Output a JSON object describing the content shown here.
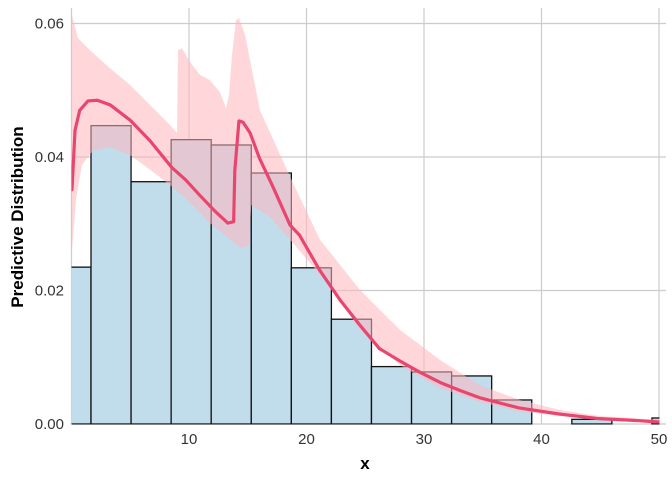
{
  "chart_data": {
    "type": "bar",
    "title": "",
    "xlabel": "x",
    "ylabel": "Predictive Distribution",
    "xlim": [
      0,
      50
    ],
    "ylim": [
      0,
      0.0615
    ],
    "grid": true,
    "x_ticks": [
      10,
      20,
      30,
      40,
      50
    ],
    "x_tick_labels": [
      "10",
      "20",
      "30",
      "40",
      "50"
    ],
    "y_ticks": [
      0,
      0.02,
      0.04,
      0.06
    ],
    "y_tick_labels": [
      "0.00",
      "0.02",
      "0.04",
      "0.06"
    ],
    "colors": {
      "bars": "#c1dcea",
      "bar_edge": "#111111",
      "ribbon": "#ffb6bd",
      "line": "#e8466f",
      "grid": "#cccccc"
    },
    "histogram": {
      "bin_edges": [
        -1.75,
        1.66,
        5.07,
        8.48,
        11.89,
        15.3,
        18.71,
        22.12,
        25.53,
        28.94,
        32.35,
        35.76,
        39.17,
        42.58,
        45.99,
        49.4,
        52.81
      ],
      "density": [
        0.0235,
        0.0447,
        0.0363,
        0.0426,
        0.0418,
        0.0376,
        0.0234,
        0.0157,
        0.0086,
        0.0078,
        0.0072,
        0.0036,
        0,
        0.0007,
        0,
        0.0009
      ]
    },
    "mean_line": {
      "x": [
        0.04,
        0.3,
        0.7,
        1.4,
        2.2,
        3.3,
        5,
        6.7,
        8.55,
        9.7,
        10.9,
        12.2,
        13.3,
        13.8,
        13.9,
        14.25,
        14.6,
        15.2,
        16,
        17.1,
        18.6,
        19.4,
        21.1,
        22.85,
        24.55,
        26.2,
        27.9,
        29.6,
        31.4,
        33.1,
        34.8,
        38.1,
        41.5,
        44.9,
        48.3,
        50
      ],
      "y": [
        0.0351,
        0.044,
        0.047,
        0.0484,
        0.0485,
        0.0478,
        0.0455,
        0.0424,
        0.0384,
        0.0366,
        0.0343,
        0.0319,
        0.0301,
        0.0303,
        0.038,
        0.0454,
        0.0452,
        0.0436,
        0.0398,
        0.0357,
        0.0298,
        0.0283,
        0.0231,
        0.0186,
        0.0148,
        0.0113,
        0.0095,
        0.0078,
        0.0062,
        0.005,
        0.0039,
        0.0024,
        0.0015,
        0.0008,
        0.0005,
        0.0003
      ]
    },
    "ribbon_upper": {
      "x": [
        0.04,
        0.55,
        1.57,
        3.28,
        4.98,
        6.68,
        8.38,
        8.98,
        9.06,
        9.4,
        10.09,
        10.94,
        11.79,
        12.64,
        13.15,
        13.4,
        13.66,
        14.0,
        14.26,
        14.77,
        16.04,
        18.85,
        21.15,
        24.55,
        27.96,
        31.36,
        34.76,
        38.17,
        41.57,
        44.97,
        50
      ],
      "y": [
        0.0613,
        0.0578,
        0.056,
        0.0533,
        0.0508,
        0.0478,
        0.0448,
        0.0436,
        0.056,
        0.0563,
        0.0542,
        0.0523,
        0.0515,
        0.0497,
        0.0473,
        0.0493,
        0.0553,
        0.0605,
        0.0608,
        0.0583,
        0.047,
        0.0361,
        0.0276,
        0.0201,
        0.0141,
        0.0096,
        0.0058,
        0.0036,
        0.0021,
        0.0012,
        0.0006
      ]
    },
    "ribbon_lower": {
      "x": [
        0.04,
        0.38,
        0.89,
        1.83,
        3.28,
        4.98,
        6.68,
        8.38,
        9.66,
        11.79,
        13.06,
        14.34,
        15.1,
        15.3,
        16.9,
        18.85,
        22.26,
        24.55,
        27.96,
        31.36,
        34.76,
        38.17,
        41.57,
        44.97,
        50
      ],
      "y": [
        0.0261,
        0.0336,
        0.0388,
        0.041,
        0.0415,
        0.0403,
        0.0381,
        0.0358,
        0.0339,
        0.0301,
        0.0283,
        0.0264,
        0.0267,
        0.0328,
        0.031,
        0.0271,
        0.0201,
        0.0141,
        0.0088,
        0.0054,
        0.0033,
        0.0019,
        0.0012,
        0.0007,
        0.0003
      ]
    }
  }
}
